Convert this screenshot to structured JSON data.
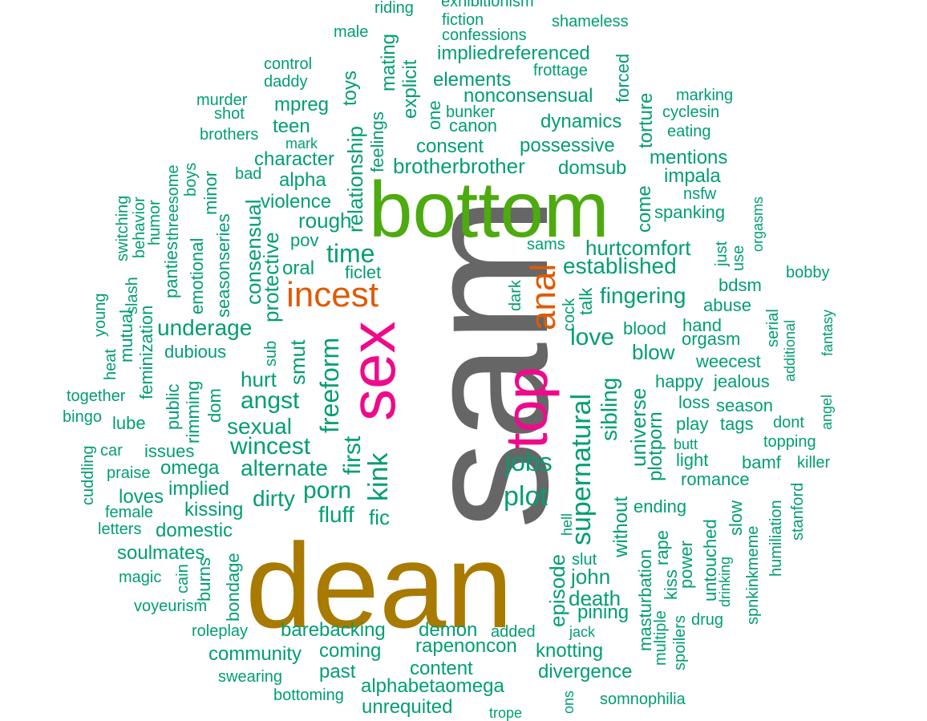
{
  "colors": {
    "background": "#ffffff",
    "green": "#009e73",
    "grass": "#4daa0f",
    "gray": "#666666",
    "gold": "#a87a00",
    "orange": "#e05a00",
    "magenta": "#ef0a8c"
  },
  "words": [
    "sam",
    "dean",
    "bottom",
    "sex",
    "top",
    "incest",
    "anal",
    "kink",
    "plot",
    "supernatural",
    "jobs",
    "freeform",
    "first",
    "time",
    "angst",
    "wincest",
    "porn",
    "fluff",
    "fic",
    "established",
    "hurtcomfort",
    "love",
    "fingering",
    "sibling",
    "brotherbrother",
    "alternate",
    "universe",
    "plotporn",
    "underage",
    "hurt",
    "smut",
    "sexual",
    "dirty",
    "episode",
    "john",
    "death",
    "pining",
    "knotting",
    "divergence",
    "rapenoncon",
    "demon",
    "barebacking",
    "coming",
    "past",
    "community",
    "content",
    "alphabetaomega",
    "unrequited",
    "soulmates",
    "domestic",
    "kissing",
    "implied",
    "loves",
    "omega",
    "issues",
    "lube",
    "dubious",
    "protective",
    "consensual",
    "rough",
    "violence",
    "alpha",
    "character",
    "teen",
    "mpreg",
    "relationship",
    "feelings",
    "toys",
    "mating",
    "explicit",
    "one",
    "bunker",
    "canon",
    "consent",
    "possessive",
    "dynamics",
    "nonconsensual",
    "elements",
    "impliedreferenced",
    "domsub",
    "mentions",
    "impala",
    "spanking",
    "come",
    "torture",
    "forced",
    "frottage",
    "confessions",
    "fiction",
    "shameless",
    "exhibitionism",
    "riding",
    "male",
    "control",
    "daddy",
    "murder",
    "shot",
    "brothers",
    "mark",
    "bad",
    "threesome",
    "boys",
    "minor",
    "seasonseries",
    "emotional",
    "panties",
    "humor",
    "behavior",
    "switching",
    "slash",
    "mutual",
    "feminization",
    "young",
    "heat",
    "together",
    "bingo",
    "public",
    "rimming",
    "dom",
    "car",
    "praise",
    "cuddling",
    "female",
    "letters",
    "magic",
    "cain",
    "burns",
    "bondage",
    "voyeurism",
    "roleplay",
    "swearing",
    "bottoming",
    "pov",
    "oral",
    "ficlet",
    "sub",
    "dark",
    "sams",
    "cock",
    "talk",
    "blood",
    "blow",
    "hand",
    "orgasm",
    "abuse",
    "bdsm",
    "weecest",
    "happy",
    "jealous",
    "loss",
    "season",
    "play",
    "tags",
    "butt",
    "light",
    "bamf",
    "romance",
    "ending",
    "topping",
    "killer",
    "dont",
    "serial",
    "additional",
    "fantasy",
    "just",
    "use",
    "orgasms",
    "nsfw",
    "marking",
    "cyclesin",
    "eating",
    "bobby",
    "angel",
    "hell",
    "slut",
    "without",
    "masturbation",
    "rape",
    "multiple",
    "kiss",
    "spoilers",
    "power",
    "untouched",
    "drinking",
    "drug",
    "slow",
    "spnkinkmeme",
    "humiliation",
    "stanford",
    "jack",
    "added",
    "somnophilia",
    "ons",
    "trope"
  ]
}
